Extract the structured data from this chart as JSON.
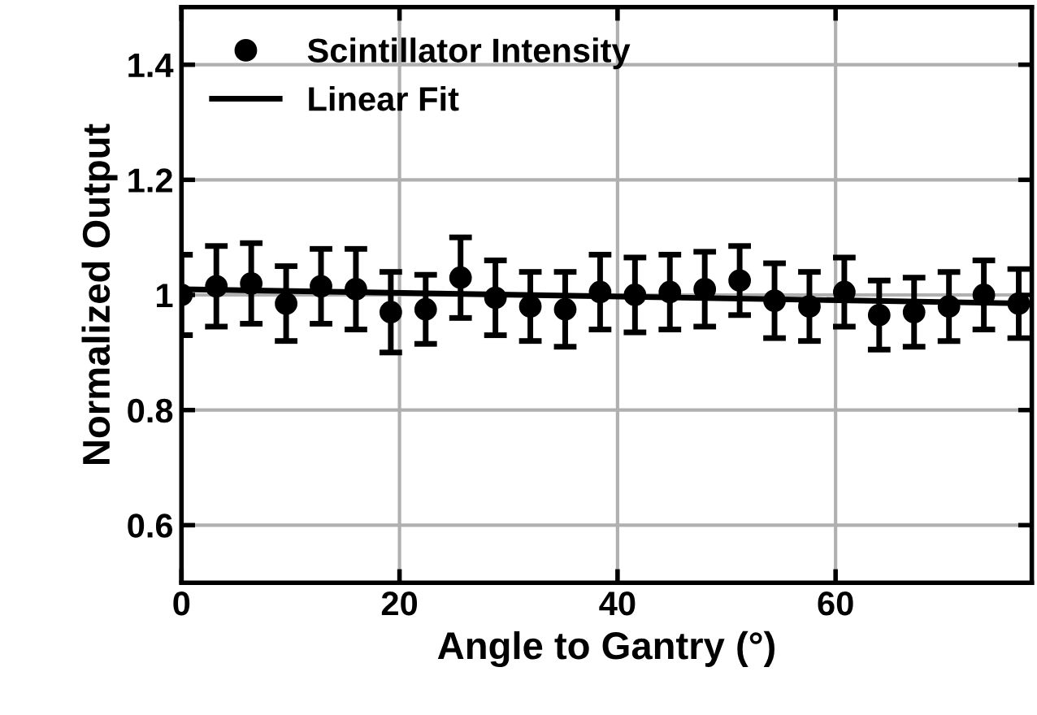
{
  "chart_data": {
    "type": "scatter",
    "xlabel": "Angle to Gantry (°)",
    "ylabel": "Normalized Output",
    "xlim": [
      0,
      78
    ],
    "xticks": [
      0,
      20,
      40,
      60
    ],
    "ylim": [
      0.5,
      1.5
    ],
    "yticks": [
      0.6,
      0.8,
      1,
      1.2,
      1.4
    ],
    "grid": true,
    "legend": "top left",
    "series": [
      {
        "name": "Scintillator Intensity",
        "marker": "circle",
        "color": "#000000",
        "x": [
          0,
          3.2,
          6.4,
          9.6,
          12.8,
          16,
          19.2,
          22.4,
          25.6,
          28.8,
          32,
          35.2,
          38.4,
          41.6,
          44.8,
          48,
          51.2,
          54.4,
          57.6,
          60.8,
          64,
          67.2,
          70.4,
          73.6,
          76.8
        ],
        "values": [
          1.0,
          1.015,
          1.02,
          0.985,
          1.015,
          1.01,
          0.97,
          0.975,
          1.03,
          0.995,
          0.98,
          0.975,
          1.005,
          1.0,
          1.005,
          1.01,
          1.025,
          0.99,
          0.98,
          1.005,
          0.965,
          0.97,
          0.98,
          1.0,
          0.985
        ],
        "errors": [
          0.07,
          0.07,
          0.07,
          0.065,
          0.065,
          0.07,
          0.07,
          0.06,
          0.07,
          0.065,
          0.06,
          0.065,
          0.065,
          0.065,
          0.065,
          0.065,
          0.06,
          0.065,
          0.06,
          0.06,
          0.06,
          0.06,
          0.06,
          0.06,
          0.06
        ]
      },
      {
        "name": "Linear Fit",
        "type": "line",
        "color": "#000000",
        "x": [
          0,
          78
        ],
        "values": [
          1.01,
          0.985
        ],
        "marker": "none",
        "line_style": "solid"
      }
    ]
  }
}
